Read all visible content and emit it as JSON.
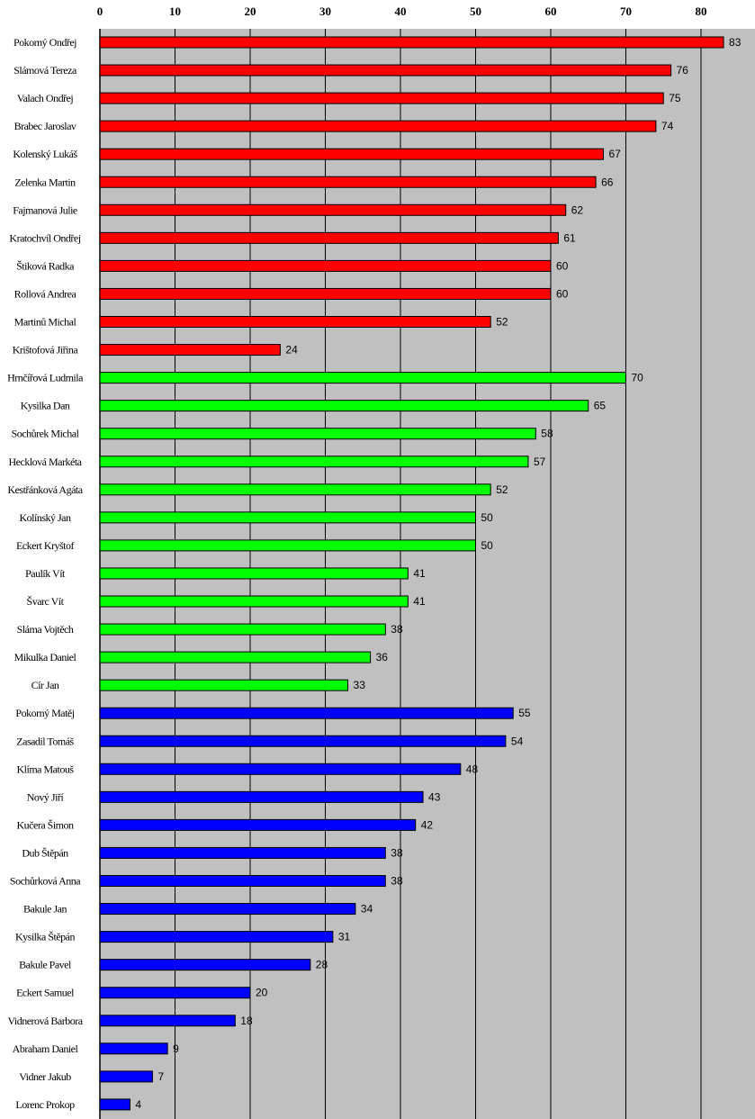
{
  "chart_data": {
    "type": "bar",
    "orientation": "horizontal",
    "title": "",
    "xlabel": "",
    "ylabel": "",
    "xlim": [
      0,
      87.2
    ],
    "xticks": [
      0,
      10,
      20,
      30,
      40,
      50,
      60,
      70,
      80
    ],
    "grid": "vertical",
    "background": "#c0c0c0",
    "categories": [
      "Pokorný Ondřej",
      "Slámová Tereza",
      "Valach Ondřej",
      "Brabec Jaroslav",
      "Kolenský Lukáš",
      "Zelenka Martin",
      "Fajmanová Julie",
      "Kratochvíl Ondřej",
      "Štiková Radka",
      "Rollová Andrea",
      "Martinů Michal",
      "Krištofová Jiřina",
      "Hrnčířová Ludmila",
      "Kysilka Dan",
      "Sochůrek Michal",
      "Hecklová Markéta",
      "Kestřánková Agáta",
      "Kolínský Jan",
      "Eckert Kryštof",
      "Paulík Vít",
      "Švarc Vít",
      "Sláma Vojtěch",
      "Mikulka Daniel",
      "Cír Jan",
      "Pokorný Matěj",
      "Zasadil Tomáš",
      "Klíma Matouš",
      "Nový Jiří",
      "Kučera Šimon",
      "Dub Štěpán",
      "Sochůrková Anna",
      "Bakule Jan",
      "Kysilka Štěpán",
      "Bakule Pavel",
      "Eckert Samuel",
      "Vidnerová Barbora",
      "Abraham Daniel",
      "Vidner Jakub",
      "Lorenc Prokop"
    ],
    "values": [
      83,
      76,
      75,
      74,
      67,
      66,
      62,
      61,
      60,
      60,
      52,
      24,
      70,
      65,
      58,
      57,
      52,
      50,
      50,
      41,
      41,
      38,
      36,
      33,
      55,
      54,
      48,
      43,
      42,
      38,
      38,
      34,
      31,
      28,
      20,
      18,
      9,
      7,
      4
    ],
    "groups": [
      {
        "color": "#ff0000",
        "count": 12
      },
      {
        "color": "#00ff00",
        "count": 12
      },
      {
        "color": "#0000ff",
        "count": 15
      }
    ]
  }
}
